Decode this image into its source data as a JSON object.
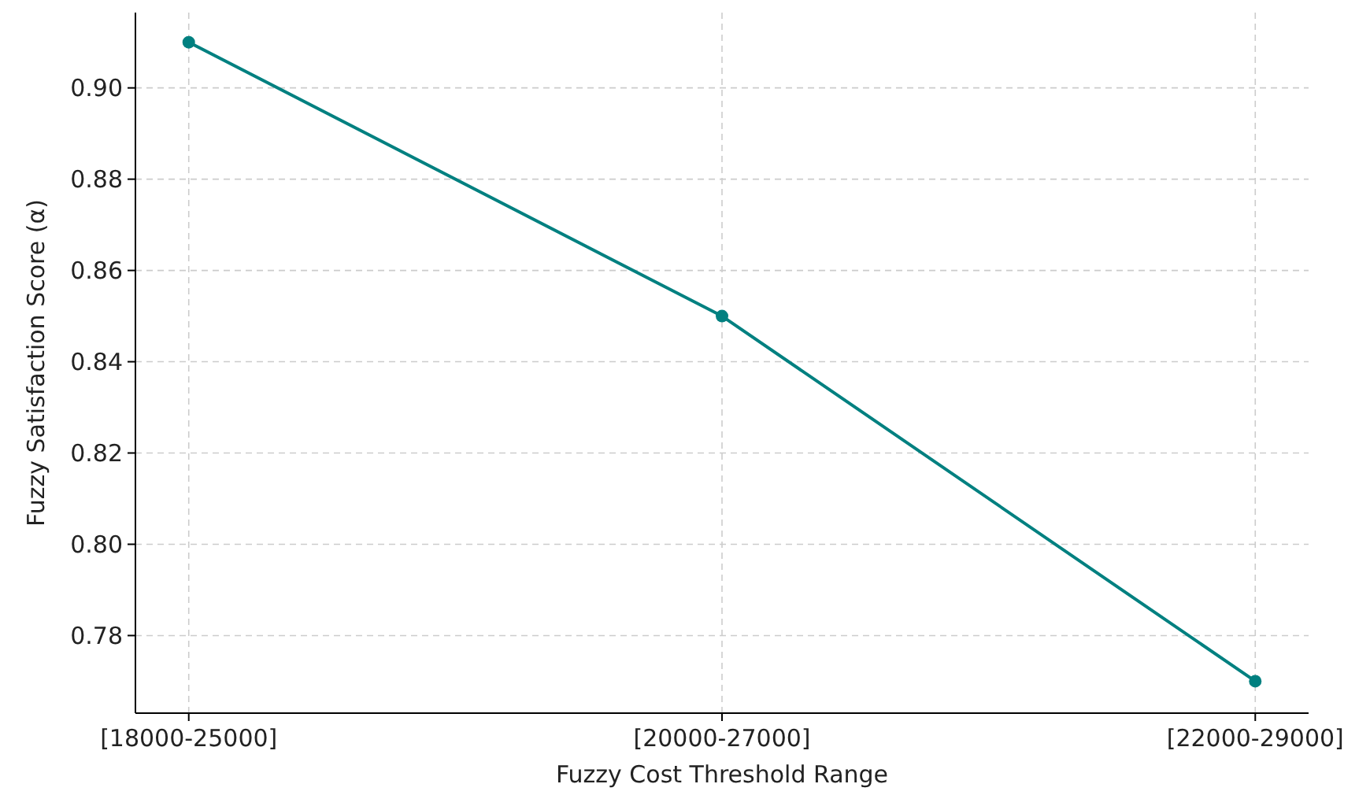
{
  "chart_data": {
    "type": "line",
    "xlabel": "Fuzzy Cost Threshold Range",
    "ylabel": "Fuzzy Satisfaction Score (α)",
    "categories": [
      "[18000-25000]",
      "[20000-27000]",
      "[22000-29000]"
    ],
    "series": [
      {
        "color": "#008080",
        "values": [
          0.91,
          0.85,
          0.77
        ]
      }
    ],
    "ylim": [
      0.763,
      0.9165
    ],
    "yticks": [
      {
        "value": 0.78,
        "label": "0.78"
      },
      {
        "value": 0.8,
        "label": "0.80"
      },
      {
        "value": 0.82,
        "label": "0.82"
      },
      {
        "value": 0.84,
        "label": "0.84"
      },
      {
        "value": 0.86,
        "label": "0.86"
      },
      {
        "value": 0.88,
        "label": "0.88"
      },
      {
        "value": 0.9,
        "label": "0.90"
      }
    ],
    "grid": true,
    "marker": "circle",
    "line_style": "solid"
  }
}
